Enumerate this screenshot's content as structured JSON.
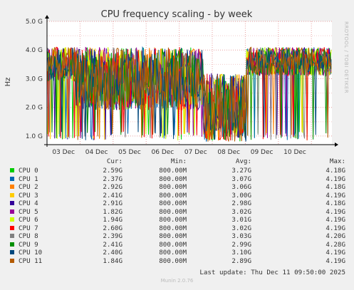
{
  "chart_data": {
    "type": "line",
    "title": "CPU frequency scaling - by week",
    "ylabel": "Hz",
    "side_label": "RRDTOOL / TOBI OETIKER",
    "ylim": [
      0.7,
      5.0
    ],
    "y_ticks": [
      {
        "value": 1.0,
        "label": "1.0 G"
      },
      {
        "value": 2.0,
        "label": "2.0 G"
      },
      {
        "value": 3.0,
        "label": "3.0 G"
      },
      {
        "value": 4.0,
        "label": "4.0 G"
      },
      {
        "value": 5.0,
        "label": "5.0 G"
      }
    ],
    "x_ticks": [
      "03 Dec",
      "04 Dec",
      "05 Dec",
      "06 Dec",
      "07 Dec",
      "08 Dec",
      "09 Dec",
      "10 Dec"
    ],
    "grid": true,
    "legend_headers": {
      "cur": "Cur:",
      "min": "Min:",
      "avg": "Avg:",
      "max": "Max:"
    },
    "series": [
      {
        "name": "CPU 0",
        "color": "#00cc00",
        "cur": "2.59G",
        "min": "800.00M",
        "avg": "3.27G",
        "max": "4.18G"
      },
      {
        "name": "CPU 1",
        "color": "#0066b3",
        "cur": "2.37G",
        "min": "800.00M",
        "avg": "3.07G",
        "max": "4.19G"
      },
      {
        "name": "CPU 2",
        "color": "#ff8000",
        "cur": "2.92G",
        "min": "800.00M",
        "avg": "3.06G",
        "max": "4.18G"
      },
      {
        "name": "CPU 3",
        "color": "#ffcc00",
        "cur": "2.41G",
        "min": "800.00M",
        "avg": "3.00G",
        "max": "4.19G"
      },
      {
        "name": "CPU 4",
        "color": "#330099",
        "cur": "2.91G",
        "min": "800.00M",
        "avg": "2.98G",
        "max": "4.18G"
      },
      {
        "name": "CPU 5",
        "color": "#990099",
        "cur": "1.82G",
        "min": "800.00M",
        "avg": "3.02G",
        "max": "4.19G"
      },
      {
        "name": "CPU 6",
        "color": "#ccff00",
        "cur": "1.94G",
        "min": "800.00M",
        "avg": "3.01G",
        "max": "4.19G"
      },
      {
        "name": "CPU 7",
        "color": "#ff0000",
        "cur": "2.60G",
        "min": "800.00M",
        "avg": "3.02G",
        "max": "4.19G"
      },
      {
        "name": "CPU 8",
        "color": "#808080",
        "cur": "2.39G",
        "min": "800.00M",
        "avg": "3.03G",
        "max": "4.20G"
      },
      {
        "name": "CPU 9",
        "color": "#008f00",
        "cur": "2.41G",
        "min": "800.00M",
        "avg": "2.99G",
        "max": "4.28G"
      },
      {
        "name": "CPU 10",
        "color": "#00487d",
        "cur": "2.40G",
        "min": "800.00M",
        "avg": "3.10G",
        "max": "4.19G"
      },
      {
        "name": "CPU 11",
        "color": "#b35a00",
        "cur": "1.84G",
        "min": "800.00M",
        "avg": "2.89G",
        "max": "4.19G"
      }
    ]
  },
  "last_update": "Last update: Thu Dec 11 09:50:00 2025",
  "footer": "Munin 2.0.76"
}
